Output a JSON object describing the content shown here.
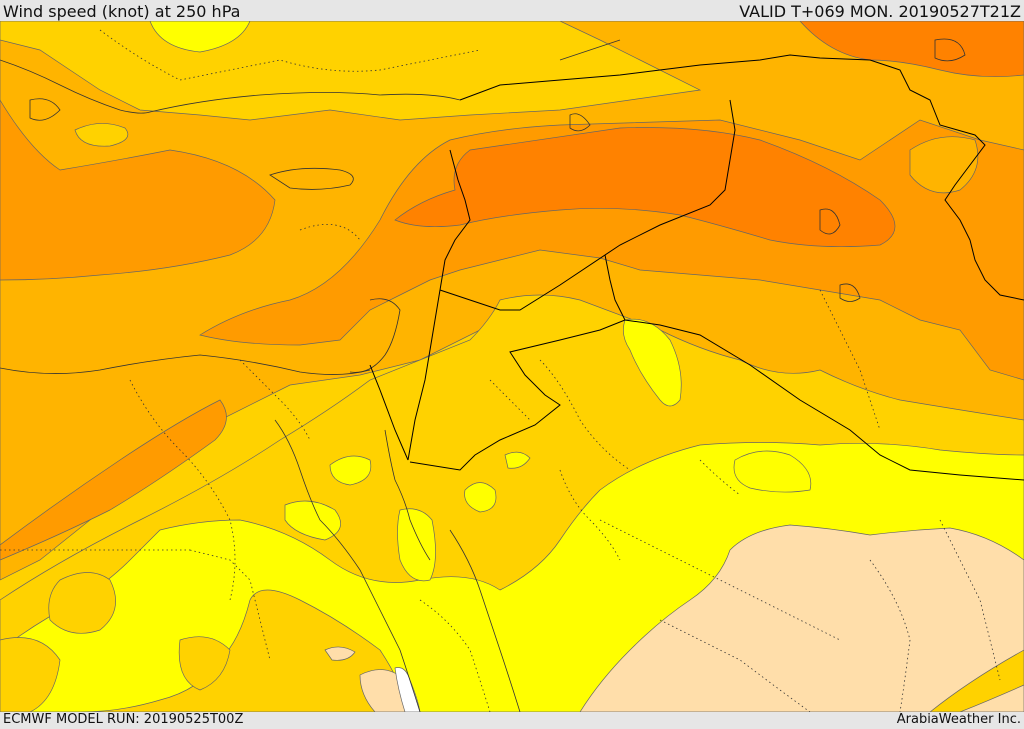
{
  "header": {
    "title": "Wind speed (knot) at 250 hPa",
    "valid": "VALID T+069 MON. 20190527T21Z"
  },
  "footer": {
    "model_run": "ECMWF MODEL RUN: 20190525T00Z",
    "credit": "ArabiaWeather Inc."
  },
  "colors": {
    "band_light_orange": "#ffb400",
    "band_orange": "#ff9b00",
    "band_dark_orange": "#ff8200",
    "band_gold": "#ffd200",
    "band_yellow": "#ffff00",
    "band_tan": "#ffdeaa",
    "band_white": "#ffffff",
    "contour_line": "#666666",
    "border_line": "#000000"
  }
}
